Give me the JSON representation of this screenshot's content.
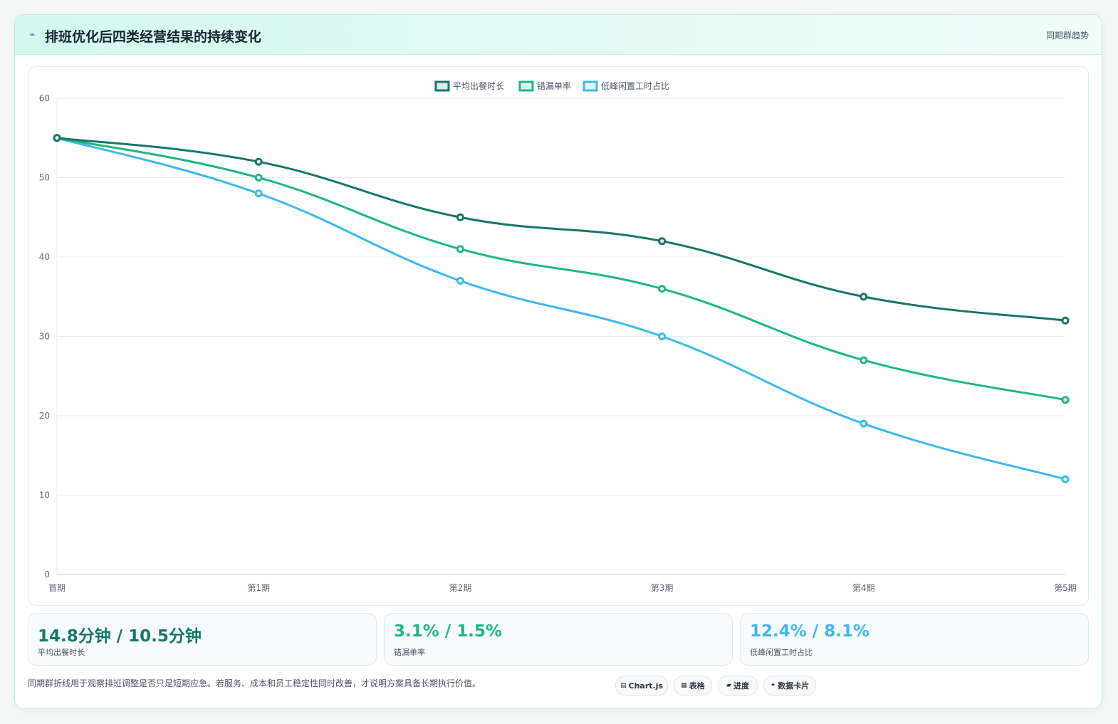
{
  "header": {
    "title": "排班优化后四类经营结果的持续变化",
    "icon": "lightning-icon",
    "tag": "同期群趋势"
  },
  "chart_data": {
    "type": "line",
    "categories": [
      "首期",
      "第1期",
      "第2期",
      "第3期",
      "第4期",
      "第5期"
    ],
    "series": [
      {
        "name": "平均出餐时长",
        "color": "#17766a",
        "values": [
          55,
          52,
          45,
          42,
          35,
          32
        ]
      },
      {
        "name": "错漏单率",
        "color": "#1db87f",
        "values": [
          55,
          50,
          41,
          36,
          27,
          22
        ]
      },
      {
        "name": "低峰闲置工时占比",
        "color": "#3bb8f3",
        "values": [
          55,
          48,
          37,
          30,
          19,
          12
        ]
      }
    ],
    "ylim": [
      0,
      60
    ],
    "yticks": [
      0,
      10,
      20,
      30,
      40,
      50,
      60
    ],
    "grid": true,
    "legend": "top-center"
  },
  "kpis": [
    {
      "value": "14.8分钟 / 10.5分钟",
      "label": "平均出餐时长",
      "color": "#17766a"
    },
    {
      "value": "3.1% / 1.5%",
      "label": "错漏单率",
      "color": "#1db87f"
    },
    {
      "value": "12.4% / 8.1%",
      "label": "低峰闲置工时占比",
      "color": "#3bb8f3"
    }
  ],
  "footer": {
    "note": "同期群折线用于观察排班调整是否只是短期应急。若服务、成本和员工稳定性同时改善，才说明方案具备长期执行价值。",
    "chips": [
      {
        "icon": "chart-icon",
        "label": "Chart.js"
      },
      {
        "icon": "table-icon",
        "label": "表格"
      },
      {
        "icon": "progress-icon",
        "label": "进度"
      },
      {
        "icon": "sparkle-icon",
        "label": "数据卡片"
      }
    ]
  }
}
